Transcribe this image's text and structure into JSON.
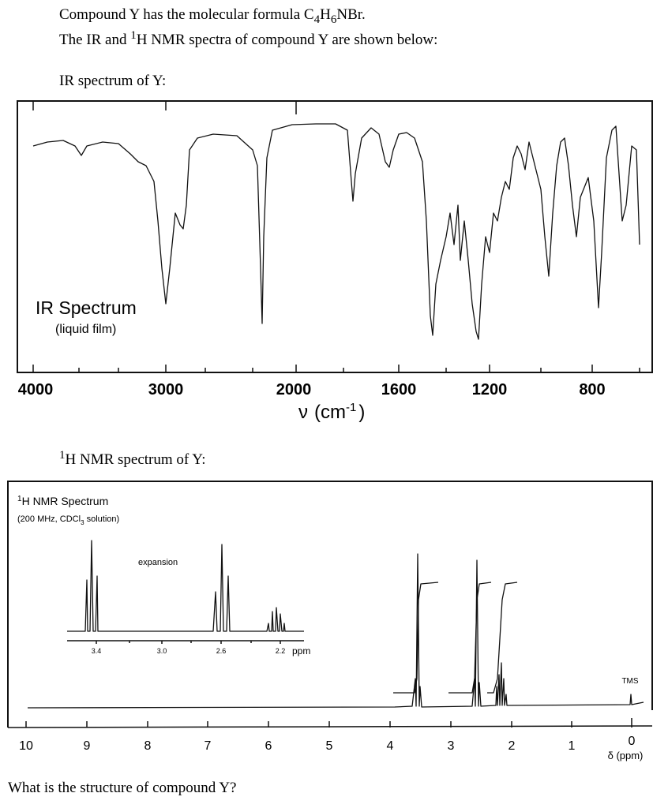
{
  "header": {
    "line1": {
      "text": "Compound Y has the molecular formula ",
      "formula": [
        "C",
        "4",
        "H",
        "6",
        "NBr."
      ]
    },
    "line2": {
      "before": "The IR and ",
      "sup": "1",
      "after": "H NMR spectra of compound Y are shown below:"
    }
  },
  "ir": {
    "caption": "IR spectrum of Y:",
    "title": "IR Spectrum",
    "subtitle": "(liquid film)",
    "tick_labels": [
      "4000",
      "3000",
      "2000",
      "1600",
      "1200",
      "800"
    ],
    "axis_label": {
      "symbol": "ν",
      "unit": "(cm",
      "sup": "-1",
      "close": ")"
    }
  },
  "nmr": {
    "caption": {
      "sup": "1",
      "text": "H NMR spectrum of Y:"
    },
    "title": {
      "sup": "1",
      "text": "H NMR Spectrum"
    },
    "subtitle": {
      "before": "(200 MHz, CDCl",
      "sub": "3",
      "after": " solution)"
    },
    "inset_label": "expansion",
    "inset_ticks": [
      "3.4",
      "3.0",
      "2.6",
      "2.2"
    ],
    "inset_unit": "ppm",
    "tms": "TMS",
    "tick_labels": [
      "10",
      "9",
      "8",
      "7",
      "6",
      "5",
      "4",
      "3",
      "2",
      "1",
      "0"
    ],
    "axis_label": "δ (ppm)"
  },
  "question": "What is the structure of compound Y?"
}
